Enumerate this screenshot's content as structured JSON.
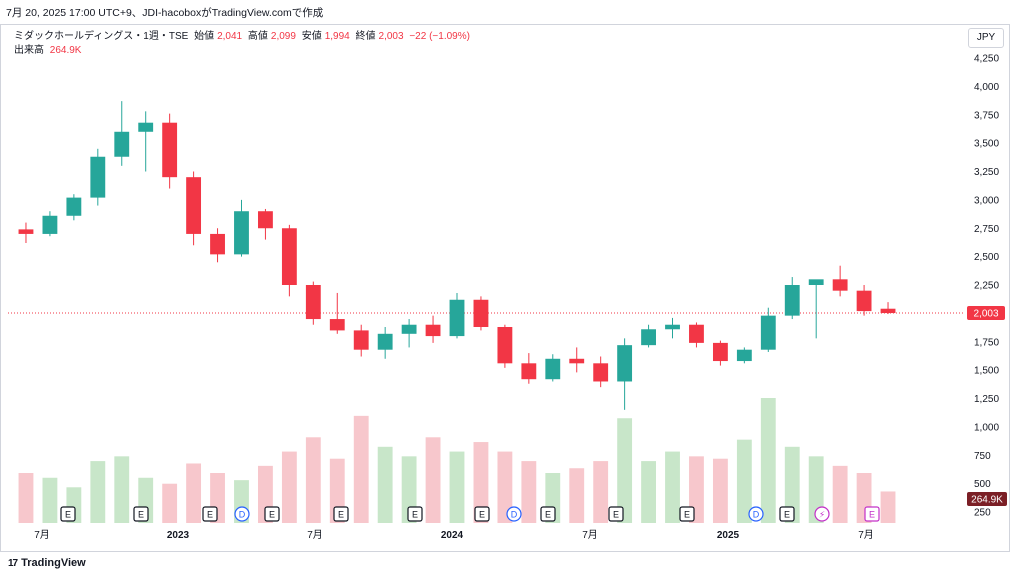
{
  "header": {
    "text": "7月 20, 2025 17:00 UTC+9、JDI-hacoboxがTradingView.comで作成"
  },
  "legend": {
    "symbol": "ミダックホールディングス・1週・TSE",
    "open_label": "始値",
    "open": "2,041",
    "high_label": "高値",
    "high": "2,099",
    "low_label": "安値",
    "low": "1,994",
    "close_label": "終値",
    "close": "2,003",
    "change": "−22 (−1.09%)",
    "volume_label": "出来高",
    "volume": "264.9K"
  },
  "currency": "JPY",
  "footer": {
    "brand": "TradingView",
    "logo_glyph": "17"
  },
  "colors": {
    "up": "#26a69a",
    "down": "#f23645",
    "up_vol": "#c8e6c9",
    "down_vol": "#f7c7cc",
    "price_line": "#f23645",
    "vol_badge": "#7b1f26"
  },
  "chart_data": {
    "type": "candlestick",
    "y_ticks": [
      "4,250",
      "4,000",
      "3,750",
      "3,500",
      "3,250",
      "3,000",
      "2,750",
      "2,500",
      "2,250",
      "2,000",
      "1,750",
      "1,500",
      "1,250",
      "1,000",
      "750",
      "500",
      "250"
    ],
    "y_range": [
      125,
      4375
    ],
    "x_labels": [
      "7月",
      "2023",
      "7月",
      "2024",
      "7月",
      "2025",
      "7月"
    ],
    "last_price_label": "2,003",
    "last_volume_label": "264.9K",
    "events": [
      "E",
      "E",
      "E",
      "D",
      "E",
      "E",
      "E",
      "E",
      "D",
      "E",
      "E",
      "E",
      "D",
      "E",
      "⚡",
      "E"
    ],
    "series": [
      {
        "x": "2022-07",
        "ohlc": [
          2740,
          2800,
          2620,
          2700
        ]
      },
      {
        "x": "2022-08",
        "ohlc": [
          2700,
          2900,
          2680,
          2860
        ]
      },
      {
        "x": "2022-09",
        "ohlc": [
          2860,
          3050,
          2820,
          3020
        ]
      },
      {
        "x": "2022-10",
        "ohlc": [
          3020,
          3450,
          2950,
          3380
        ]
      },
      {
        "x": "2022-11",
        "ohlc": [
          3380,
          3870,
          3300,
          3600
        ]
      },
      {
        "x": "2022-12",
        "ohlc": [
          3600,
          3780,
          3250,
          3680
        ]
      },
      {
        "x": "2023-01",
        "ohlc": [
          3680,
          3760,
          3100,
          3200
        ]
      },
      {
        "x": "2023-02",
        "ohlc": [
          3200,
          3250,
          2600,
          2700
        ]
      },
      {
        "x": "2023-03",
        "ohlc": [
          2700,
          2750,
          2450,
          2520
        ]
      },
      {
        "x": "2023-04",
        "ohlc": [
          2520,
          3000,
          2500,
          2900
        ]
      },
      {
        "x": "2023-05",
        "ohlc": [
          2900,
          2920,
          2650,
          2750
        ]
      },
      {
        "x": "2023-06",
        "ohlc": [
          2750,
          2780,
          2150,
          2250
        ]
      },
      {
        "x": "2023-07",
        "ohlc": [
          2250,
          2280,
          1900,
          1950
        ]
      },
      {
        "x": "2023-08",
        "ohlc": [
          1950,
          2180,
          1820,
          1850
        ]
      },
      {
        "x": "2023-09",
        "ohlc": [
          1850,
          1900,
          1620,
          1680
        ]
      },
      {
        "x": "2023-10",
        "ohlc": [
          1680,
          1880,
          1600,
          1820
        ]
      },
      {
        "x": "2023-11",
        "ohlc": [
          1820,
          1950,
          1700,
          1900
        ]
      },
      {
        "x": "2023-12",
        "ohlc": [
          1900,
          1980,
          1740,
          1800
        ]
      },
      {
        "x": "2024-01",
        "ohlc": [
          1800,
          2180,
          1780,
          2120
        ]
      },
      {
        "x": "2024-02",
        "ohlc": [
          2120,
          2150,
          1850,
          1880
        ]
      },
      {
        "x": "2024-03",
        "ohlc": [
          1880,
          1900,
          1520,
          1560
        ]
      },
      {
        "x": "2024-04",
        "ohlc": [
          1560,
          1650,
          1380,
          1420
        ]
      },
      {
        "x": "2024-05",
        "ohlc": [
          1420,
          1640,
          1400,
          1600
        ]
      },
      {
        "x": "2024-06",
        "ohlc": [
          1600,
          1700,
          1480,
          1560
        ]
      },
      {
        "x": "2024-07",
        "ohlc": [
          1560,
          1620,
          1350,
          1400
        ]
      },
      {
        "x": "2024-08",
        "ohlc": [
          1400,
          1780,
          1150,
          1720
        ]
      },
      {
        "x": "2024-09",
        "ohlc": [
          1720,
          1900,
          1700,
          1860
        ]
      },
      {
        "x": "2024-10",
        "ohlc": [
          1860,
          1960,
          1780,
          1900
        ]
      },
      {
        "x": "2024-11",
        "ohlc": [
          1900,
          1920,
          1700,
          1740
        ]
      },
      {
        "x": "2024-12",
        "ohlc": [
          1740,
          1760,
          1540,
          1580
        ]
      },
      {
        "x": "2025-01",
        "ohlc": [
          1580,
          1700,
          1560,
          1680
        ]
      },
      {
        "x": "2025-02",
        "ohlc": [
          1680,
          2050,
          1660,
          1980
        ]
      },
      {
        "x": "2025-03",
        "ohlc": [
          1980,
          2320,
          1950,
          2250
        ]
      },
      {
        "x": "2025-04",
        "ohlc": [
          2250,
          2280,
          1780,
          2300
        ]
      },
      {
        "x": "2025-05",
        "ohlc": [
          2300,
          2420,
          2150,
          2200
        ]
      },
      {
        "x": "2025-06",
        "ohlc": [
          2200,
          2250,
          1980,
          2020
        ]
      },
      {
        "x": "2025-07",
        "ohlc": [
          2041,
          2099,
          1994,
          2003
        ]
      }
    ],
    "volume": [
      420,
      380,
      300,
      520,
      560,
      380,
      330,
      500,
      420,
      360,
      480,
      600,
      720,
      540,
      900,
      640,
      560,
      720,
      600,
      680,
      600,
      520,
      420,
      460,
      520,
      880,
      520,
      600,
      560,
      540,
      700,
      1050,
      640,
      560,
      480,
      420,
      264.9
    ]
  }
}
